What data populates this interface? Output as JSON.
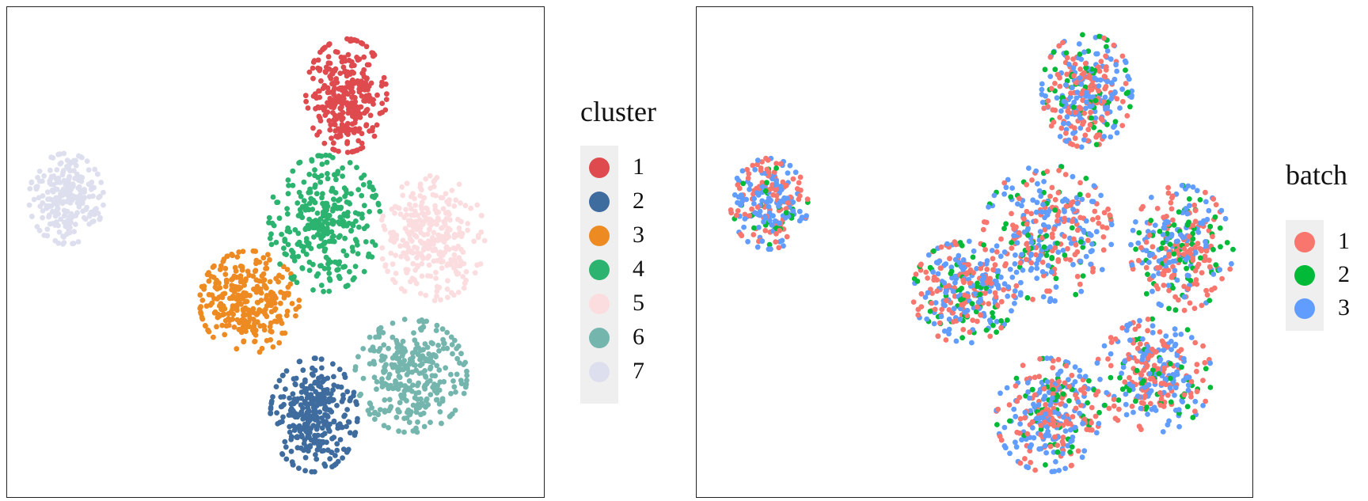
{
  "chart_data": [
    {
      "type": "scatter",
      "title": "",
      "xlabel": "",
      "ylabel": "",
      "axes_ticks": false,
      "grid": false,
      "legend": {
        "title": "cluster",
        "placement": "right",
        "entries": [
          "1",
          "2",
          "3",
          "4",
          "5",
          "6",
          "7"
        ]
      },
      "colors": {
        "1": "#de4a4e",
        "2": "#3f6c9e",
        "3": "#ee8a22",
        "4": "#2bb36f",
        "5": "#fbdde0",
        "6": "#74b5ad",
        "7": "#dddfee"
      },
      "series": [
        {
          "name": "1",
          "center": [
            0.63,
            0.18
          ],
          "spread": [
            0.065,
            0.1
          ],
          "n": 320
        },
        {
          "name": "2",
          "center": [
            0.57,
            0.83
          ],
          "spread": [
            0.07,
            0.1
          ],
          "n": 320
        },
        {
          "name": "3",
          "center": [
            0.45,
            0.6
          ],
          "spread": [
            0.08,
            0.09
          ],
          "n": 300
        },
        {
          "name": "4",
          "center": [
            0.59,
            0.44
          ],
          "spread": [
            0.09,
            0.12
          ],
          "n": 310
        },
        {
          "name": "5",
          "center": [
            0.79,
            0.47
          ],
          "spread": [
            0.085,
            0.11
          ],
          "n": 300
        },
        {
          "name": "6",
          "center": [
            0.75,
            0.75
          ],
          "spread": [
            0.09,
            0.1
          ],
          "n": 300
        },
        {
          "name": "7",
          "center": [
            0.11,
            0.39
          ],
          "spread": [
            0.06,
            0.08
          ],
          "n": 240
        }
      ]
    },
    {
      "type": "scatter",
      "title": "",
      "xlabel": "",
      "ylabel": "",
      "axes_ticks": false,
      "grid": false,
      "legend": {
        "title": "batch",
        "placement": "right",
        "entries": [
          "1",
          "2",
          "3"
        ]
      },
      "colors": {
        "1": "#f8766d",
        "2": "#00ba38",
        "3": "#619cff"
      },
      "series": [
        {
          "name": "1",
          "share": 0.42
        },
        {
          "name": "2",
          "share": 0.16
        },
        {
          "name": "3",
          "share": 0.42
        }
      ],
      "layout_clusters": [
        {
          "center": [
            0.7,
            0.17
          ],
          "spread": [
            0.07,
            0.1
          ],
          "n": 320
        },
        {
          "center": [
            0.63,
            0.83
          ],
          "spread": [
            0.08,
            0.1
          ],
          "n": 330
        },
        {
          "center": [
            0.48,
            0.58
          ],
          "spread": [
            0.08,
            0.09
          ],
          "n": 300
        },
        {
          "center": [
            0.63,
            0.46
          ],
          "spread": [
            0.1,
            0.12
          ],
          "n": 320
        },
        {
          "center": [
            0.87,
            0.49
          ],
          "spread": [
            0.08,
            0.11
          ],
          "n": 300
        },
        {
          "center": [
            0.82,
            0.75
          ],
          "spread": [
            0.09,
            0.1
          ],
          "n": 300
        },
        {
          "center": [
            0.13,
            0.4
          ],
          "spread": [
            0.06,
            0.08
          ],
          "n": 240
        }
      ]
    }
  ]
}
